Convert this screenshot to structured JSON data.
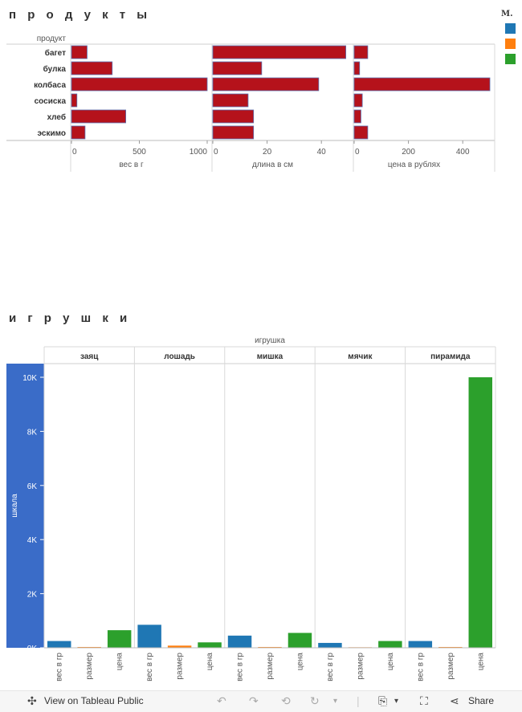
{
  "chart_data": [
    {
      "type": "bar",
      "orientation": "horizontal",
      "title": "п р о д у к т ы",
      "row_header": "продукт",
      "categories": [
        "багет",
        "булка",
        "колбаса",
        "сосиска",
        "хлеб",
        "эскимо"
      ],
      "bar_color": "#b5121b",
      "panels": [
        {
          "xlabel": "вес в г",
          "xlim": [
            0,
            1000
          ],
          "ticks": [
            0,
            500,
            1000
          ],
          "tick_labels": [
            "0",
            "500",
            "1000"
          ],
          "values": [
            115,
            300,
            1000,
            40,
            400,
            100
          ]
        },
        {
          "xlabel": "длина  в см",
          "xlim": [
            0,
            50
          ],
          "ticks": [
            0,
            20,
            40
          ],
          "tick_labels": [
            "0",
            "20",
            "40"
          ],
          "values": [
            49,
            18,
            39,
            13,
            15,
            15
          ]
        },
        {
          "xlabel": "цена в рублях",
          "xlim": [
            0,
            500
          ],
          "ticks": [
            0,
            200,
            400
          ],
          "tick_labels": [
            "0",
            "200",
            "400"
          ],
          "values": [
            50,
            20,
            500,
            30,
            25,
            50
          ]
        }
      ]
    },
    {
      "type": "bar",
      "title": "и г р у ш к и",
      "column_header": "игрушка",
      "ylabel": "шкала",
      "ylim": [
        0,
        10000
      ],
      "yticks": [
        0,
        2000,
        4000,
        6000,
        8000,
        10000
      ],
      "ytick_labels": [
        "0K",
        "2K",
        "4K",
        "6K",
        "8K",
        "10K"
      ],
      "groups": [
        "заяц",
        "лошадь",
        "мишка",
        "мячик",
        "пирамида"
      ],
      "measures": [
        "вес в гр",
        "размер",
        "цена"
      ],
      "measure_colors": [
        "#1f77b4",
        "#ff7f0e",
        "#2ca02c"
      ],
      "series": [
        {
          "name": "вес в гр",
          "values": [
            250,
            850,
            450,
            180,
            250
          ]
        },
        {
          "name": "размер",
          "values": [
            30,
            80,
            30,
            20,
            30
          ]
        },
        {
          "name": "цена",
          "values": [
            650,
            200,
            550,
            250,
            10000
          ]
        }
      ]
    }
  ],
  "legend": {
    "title": "М.",
    "colors": [
      "#1f77b4",
      "#ff7f0e",
      "#2ca02c"
    ]
  },
  "toolbar": {
    "view_label": "View on Tableau Public",
    "share_label": "Share"
  }
}
